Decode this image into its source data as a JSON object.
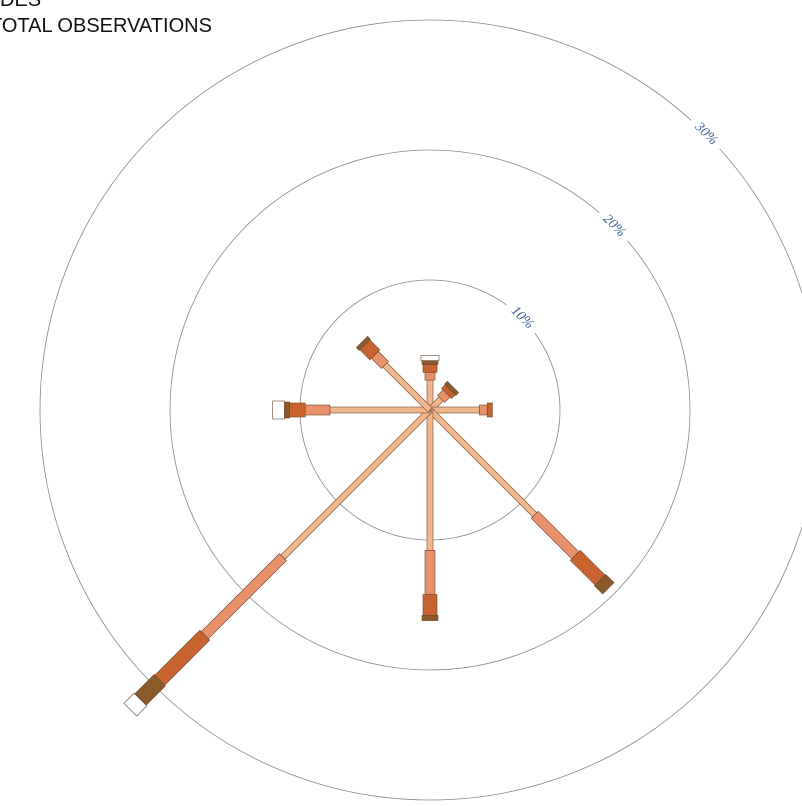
{
  "chart_data": {
    "type": "windrose",
    "title": "DES",
    "subtitle": "TOTAL OBSERVATIONS",
    "categories": [
      null,
      null,
      null,
      null,
      null,
      null,
      null,
      null
    ],
    "series": [
      {
        "color": "#f2b68c",
        "values": [
          2.3,
          1.2,
          3.8,
          11.4,
          10.8,
          16.0,
          7.7,
          4.9
        ]
      },
      {
        "color": "#e8906a",
        "values": [
          0.6,
          0.6,
          0.6,
          4.4,
          3.4,
          8.5,
          1.9,
          1.1
        ]
      },
      {
        "color": "#c8622e",
        "values": [
          0.6,
          0.4,
          0.4,
          2.7,
          1.6,
          4.9,
          1.2,
          1.1
        ]
      },
      {
        "color": "#8b5a2b",
        "values": [
          0.3,
          0.3,
          0,
          0.9,
          0.4,
          2.1,
          0.4,
          0.3
        ]
      },
      {
        "color": "#ffffff",
        "values": [
          0.4,
          0,
          0,
          0,
          0,
          1.1,
          0.9,
          0
        ]
      }
    ],
    "rlim": [
      0,
      30
    ],
    "rticks": [
      {
        "value": 10,
        "label": "10%"
      },
      {
        "value": 20,
        "label": "20%"
      },
      {
        "value": 30,
        "label": "30%"
      }
    ]
  }
}
